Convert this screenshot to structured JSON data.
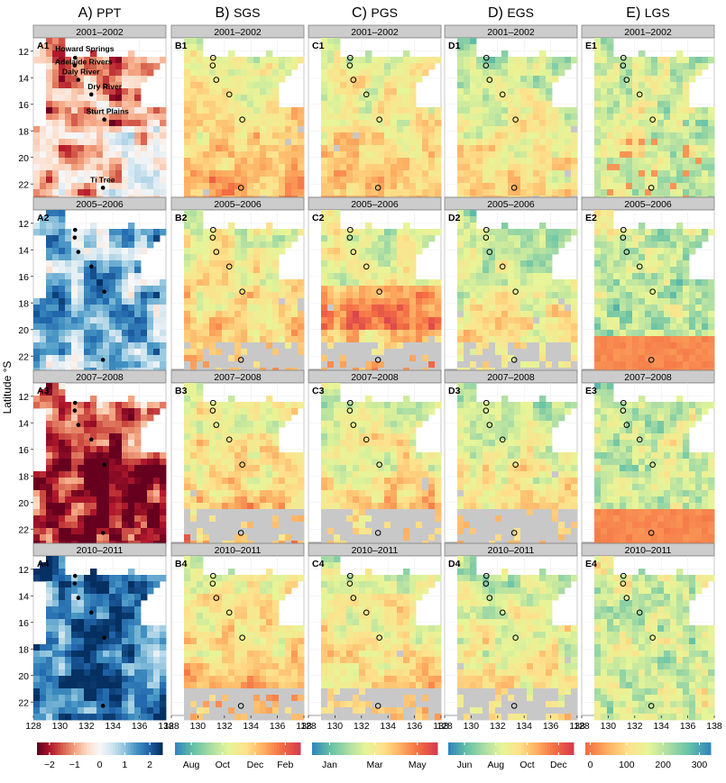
{
  "columns": [
    {
      "letter": "A)",
      "var": "PPT"
    },
    {
      "letter": "B)",
      "var": "SGS"
    },
    {
      "letter": "C)",
      "var": "PGS"
    },
    {
      "letter": "D)",
      "var": "EGS"
    },
    {
      "letter": "E)",
      "var": "LGS"
    }
  ],
  "years": [
    "2001–2002",
    "2005–2006",
    "2007–2008",
    "2010–2011"
  ],
  "panel_tags": [
    [
      "A1",
      "B1",
      "C1",
      "D1",
      "E1"
    ],
    [
      "A2",
      "B2",
      "C2",
      "D2",
      "E2"
    ],
    [
      "A3",
      "B3",
      "C3",
      "D3",
      "E3"
    ],
    [
      "A4",
      "B4",
      "C4",
      "D4",
      "E4"
    ]
  ],
  "ylabel": "Latitude °S",
  "y_ticks": [
    "12",
    "14",
    "16",
    "18",
    "20",
    "22"
  ],
  "x_ticks": [
    "128",
    "130",
    "132",
    "134",
    "136",
    "138"
  ],
  "sites": [
    "Howard Springs",
    "Adelaide Rivers",
    "Daly River",
    "Dry River",
    "Sturt Plains",
    "Ti Tree"
  ],
  "site_coords": [
    [
      131.15,
      12.5
    ],
    [
      131.12,
      13.08
    ],
    [
      131.39,
      14.16
    ],
    [
      132.37,
      15.26
    ],
    [
      133.35,
      17.15
    ],
    [
      133.25,
      22.28
    ]
  ],
  "legends": [
    {
      "ticks": [
        "−2",
        "−1",
        "0",
        "1",
        "2"
      ],
      "colors": [
        "#67001f",
        "#b2182b",
        "#d6604d",
        "#f4a582",
        "#fddbc7",
        "#f7f7f7",
        "#d1e5f0",
        "#92c5de",
        "#4393c3",
        "#2166ac",
        "#053061"
      ]
    },
    {
      "ticks": [
        "Aug",
        "Oct",
        "Dec",
        "Feb"
      ],
      "colors": [
        "#3288bd",
        "#66c2a5",
        "#abdda4",
        "#e6f598",
        "#fee08b",
        "#fdae61",
        "#f46d43",
        "#d53e4f"
      ]
    },
    {
      "ticks": [
        "Jan",
        "Mar",
        "May"
      ],
      "colors": [
        "#3288bd",
        "#66c2a5",
        "#abdda4",
        "#e6f598",
        "#fee08b",
        "#fdae61",
        "#f46d43",
        "#d53e4f"
      ]
    },
    {
      "ticks": [
        "Jun",
        "Aug",
        "Oct",
        "Dec"
      ],
      "colors": [
        "#3288bd",
        "#66c2a5",
        "#abdda4",
        "#e6f598",
        "#fee08b",
        "#fdae61",
        "#f46d43",
        "#d53e4f"
      ]
    },
    {
      "ticks": [
        "0",
        "100",
        "200",
        "300"
      ],
      "colors": [
        "#f46d43",
        "#fdae61",
        "#fee08b",
        "#e6f598",
        "#abdda4",
        "#66c2a5",
        "#3288bd"
      ]
    }
  ]
}
